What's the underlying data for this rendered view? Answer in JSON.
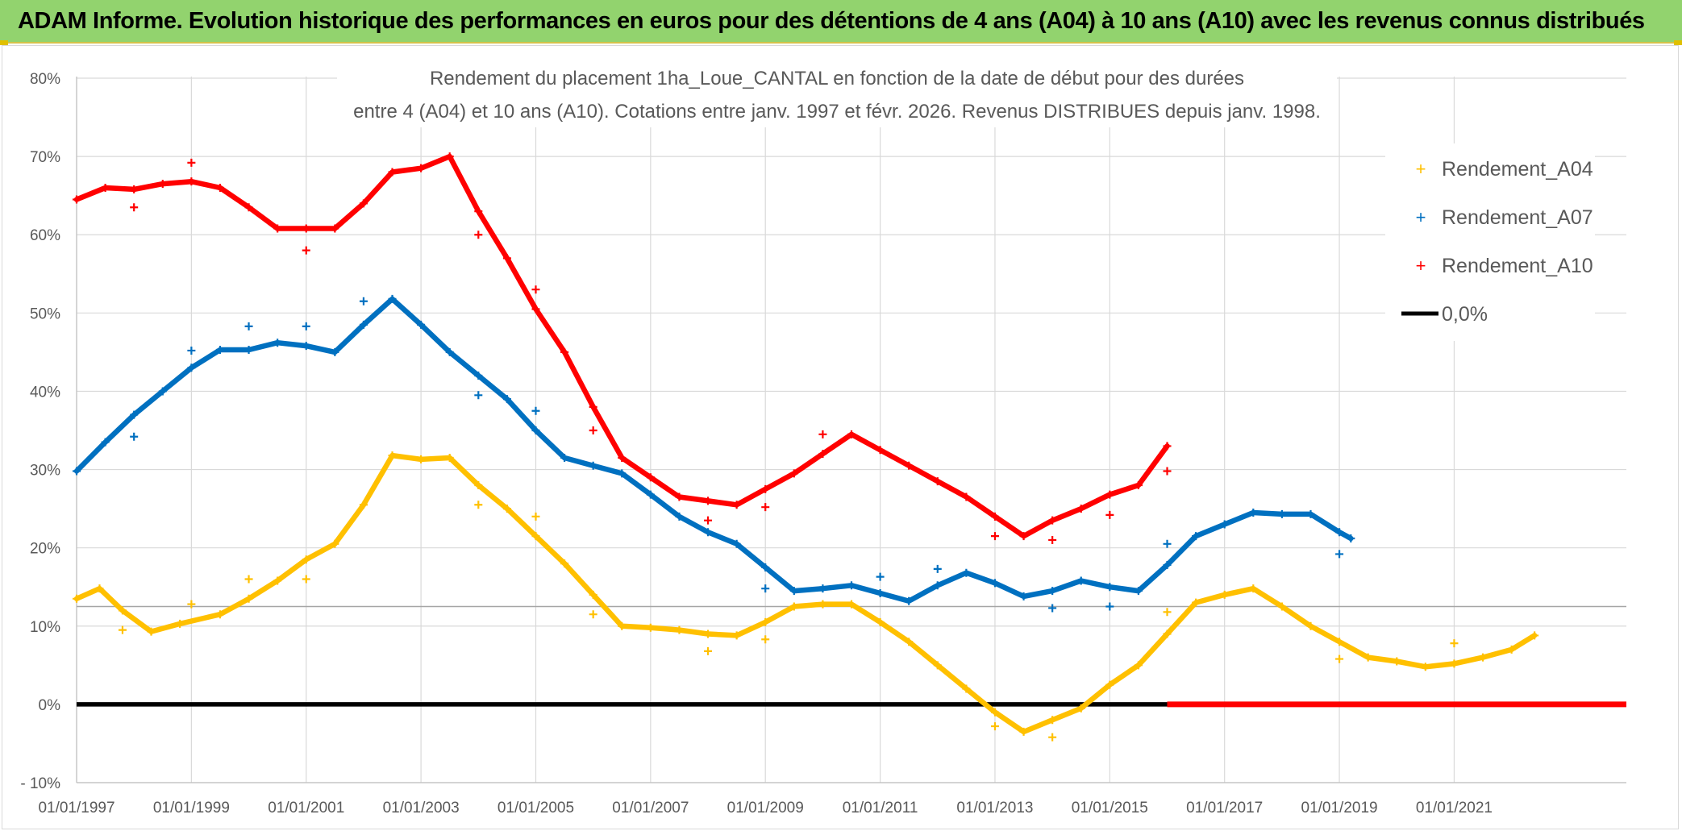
{
  "header": {
    "title": "ADAM Informe. Evolution historique des performances en euros pour des détentions de 4 ans (A04) à 10 ans (A10) avec les revenus connus distribués"
  },
  "colors": {
    "banner": "#92d36e",
    "A04": "#ffc000",
    "A07": "#0070c0",
    "A10": "#ff0000",
    "zero": "#000000"
  },
  "chart_data": {
    "type": "scatter",
    "title_line1": "Rendement du placement 1ha_Loue_CANTAL en fonction de la date de début pour des durées",
    "title_line2": "entre 4 (A04) et 10 ans (A10). Cotations entre janv. 1997 et févr. 2026. Revenus DISTRIBUES depuis janv. 1998.",
    "xlabel": "",
    "ylabel": "",
    "xlim": [
      1997.0,
      2024.0
    ],
    "ylim": [
      -10,
      80
    ],
    "y_ticks": [
      -10,
      0,
      10,
      20,
      30,
      40,
      50,
      60,
      70,
      80
    ],
    "y_tick_labels": [
      "- 10%",
      "0%",
      "10%",
      "20%",
      "30%",
      "40%",
      "50%",
      "60%",
      "70%",
      "80%"
    ],
    "x_ticks": [
      1997,
      1999,
      2001,
      2003,
      2005,
      2007,
      2009,
      2011,
      2013,
      2015,
      2017,
      2019,
      2021
    ],
    "x_tick_labels": [
      "01/01/1997",
      "01/01/1999",
      "01/01/2001",
      "01/01/2003",
      "01/01/2005",
      "01/01/2007",
      "01/01/2009",
      "01/01/2011",
      "01/01/2013",
      "01/01/2015",
      "01/01/2017",
      "01/01/2019",
      "01/01/2021"
    ],
    "legend_position": "top-right",
    "series": [
      {
        "name": "Rendement_A04",
        "color": "#ffc000",
        "points": [
          [
            1997.0,
            13.5
          ],
          [
            1997.4,
            14.8
          ],
          [
            1997.8,
            12.0
          ],
          [
            1998.3,
            9.3
          ],
          [
            1998.8,
            10.3
          ],
          [
            1999.5,
            11.5
          ],
          [
            2000.0,
            13.5
          ],
          [
            2000.5,
            15.8
          ],
          [
            2001.0,
            18.5
          ],
          [
            2001.5,
            20.5
          ],
          [
            2002.0,
            25.5
          ],
          [
            2002.5,
            31.8
          ],
          [
            2003.0,
            31.3
          ],
          [
            2003.5,
            31.5
          ],
          [
            2004.0,
            28.0
          ],
          [
            2004.5,
            25.0
          ],
          [
            2005.0,
            21.5
          ],
          [
            2005.5,
            18.0
          ],
          [
            2006.0,
            14.0
          ],
          [
            2006.5,
            10.0
          ],
          [
            2007.0,
            9.8
          ],
          [
            2007.5,
            9.5
          ],
          [
            2008.0,
            9.0
          ],
          [
            2008.5,
            8.8
          ],
          [
            2009.0,
            10.5
          ],
          [
            2009.5,
            12.5
          ],
          [
            2010.0,
            12.8
          ],
          [
            2010.5,
            12.8
          ],
          [
            2011.0,
            10.5
          ],
          [
            2011.5,
            8.0
          ],
          [
            2012.0,
            5.0
          ],
          [
            2012.5,
            2.0
          ],
          [
            2013.0,
            -1.0
          ],
          [
            2013.5,
            -3.5
          ],
          [
            2014.0,
            -2.0
          ],
          [
            2014.5,
            -0.5
          ],
          [
            2015.0,
            2.5
          ],
          [
            2015.5,
            5.0
          ],
          [
            2016.0,
            9.0
          ],
          [
            2016.5,
            13.0
          ],
          [
            2017.0,
            14.0
          ],
          [
            2017.5,
            14.8
          ],
          [
            2018.0,
            12.5
          ],
          [
            2018.5,
            10.0
          ],
          [
            2019.0,
            8.0
          ],
          [
            2019.5,
            6.0
          ],
          [
            2020.0,
            5.5
          ],
          [
            2020.5,
            4.8
          ],
          [
            2021.0,
            5.2
          ],
          [
            2021.5,
            6.0
          ],
          [
            2022.0,
            7.0
          ],
          [
            2022.4,
            8.8
          ]
        ],
        "outliers": [
          [
            1997.8,
            9.5
          ],
          [
            1999.0,
            12.8
          ],
          [
            2000.0,
            16.0
          ],
          [
            2001.0,
            16.0
          ],
          [
            2004.0,
            25.5
          ],
          [
            2005.0,
            24.0
          ],
          [
            2006.0,
            11.5
          ],
          [
            2008.0,
            6.8
          ],
          [
            2009.0,
            8.3
          ],
          [
            2013.0,
            -2.8
          ],
          [
            2014.0,
            -4.2
          ],
          [
            2016.0,
            11.8
          ],
          [
            2019.0,
            5.8
          ],
          [
            2021.0,
            7.8
          ]
        ]
      },
      {
        "name": "Rendement_A07",
        "color": "#0070c0",
        "points": [
          [
            1997.0,
            29.8
          ],
          [
            1997.5,
            33.5
          ],
          [
            1998.0,
            37.0
          ],
          [
            1998.5,
            40.0
          ],
          [
            1999.0,
            43.0
          ],
          [
            1999.5,
            45.3
          ],
          [
            2000.0,
            45.3
          ],
          [
            2000.5,
            46.2
          ],
          [
            2001.0,
            45.8
          ],
          [
            2001.5,
            45.0
          ],
          [
            2002.0,
            48.5
          ],
          [
            2002.5,
            51.8
          ],
          [
            2003.0,
            48.5
          ],
          [
            2003.5,
            45.0
          ],
          [
            2004.0,
            42.0
          ],
          [
            2004.5,
            39.0
          ],
          [
            2005.0,
            35.0
          ],
          [
            2005.5,
            31.5
          ],
          [
            2006.0,
            30.5
          ],
          [
            2006.5,
            29.5
          ],
          [
            2007.0,
            26.8
          ],
          [
            2007.5,
            24.0
          ],
          [
            2008.0,
            22.0
          ],
          [
            2008.5,
            20.5
          ],
          [
            2009.0,
            17.5
          ],
          [
            2009.5,
            14.5
          ],
          [
            2010.0,
            14.8
          ],
          [
            2010.5,
            15.2
          ],
          [
            2011.0,
            14.2
          ],
          [
            2011.5,
            13.2
          ],
          [
            2012.0,
            15.2
          ],
          [
            2012.5,
            16.8
          ],
          [
            2013.0,
            15.5
          ],
          [
            2013.5,
            13.8
          ],
          [
            2014.0,
            14.5
          ],
          [
            2014.5,
            15.8
          ],
          [
            2015.0,
            15.0
          ],
          [
            2015.5,
            14.5
          ],
          [
            2016.0,
            17.8
          ],
          [
            2016.5,
            21.5
          ],
          [
            2017.0,
            23.0
          ],
          [
            2017.5,
            24.5
          ],
          [
            2018.0,
            24.3
          ],
          [
            2018.5,
            24.3
          ],
          [
            2019.0,
            22.0
          ],
          [
            2019.2,
            21.2
          ]
        ],
        "outliers": [
          [
            1998.0,
            34.2
          ],
          [
            1999.0,
            45.2
          ],
          [
            2000.0,
            48.3
          ],
          [
            2001.0,
            48.3
          ],
          [
            2002.0,
            51.5
          ],
          [
            2004.0,
            39.5
          ],
          [
            2005.0,
            37.5
          ],
          [
            2009.0,
            14.8
          ],
          [
            2011.0,
            16.3
          ],
          [
            2012.0,
            17.3
          ],
          [
            2014.0,
            12.3
          ],
          [
            2015.0,
            12.5
          ],
          [
            2016.0,
            20.5
          ],
          [
            2019.0,
            19.2
          ]
        ]
      },
      {
        "name": "Rendement_A10",
        "color": "#ff0000",
        "points": [
          [
            1997.0,
            64.5
          ],
          [
            1997.5,
            66.0
          ],
          [
            1998.0,
            65.8
          ],
          [
            1998.5,
            66.5
          ],
          [
            1999.0,
            66.8
          ],
          [
            1999.5,
            66.0
          ],
          [
            2000.0,
            63.5
          ],
          [
            2000.5,
            60.8
          ],
          [
            2001.0,
            60.8
          ],
          [
            2001.5,
            60.8
          ],
          [
            2002.0,
            64.0
          ],
          [
            2002.5,
            68.0
          ],
          [
            2003.0,
            68.5
          ],
          [
            2003.5,
            70.0
          ],
          [
            2004.0,
            63.0
          ],
          [
            2004.5,
            57.0
          ],
          [
            2005.0,
            50.5
          ],
          [
            2005.5,
            45.0
          ],
          [
            2006.0,
            38.0
          ],
          [
            2006.5,
            31.5
          ],
          [
            2007.0,
            29.0
          ],
          [
            2007.5,
            26.5
          ],
          [
            2008.0,
            26.0
          ],
          [
            2008.5,
            25.5
          ],
          [
            2009.0,
            27.5
          ],
          [
            2009.5,
            29.5
          ],
          [
            2010.0,
            32.0
          ],
          [
            2010.5,
            34.5
          ],
          [
            2011.0,
            32.5
          ],
          [
            2011.5,
            30.5
          ],
          [
            2012.0,
            28.5
          ],
          [
            2012.5,
            26.5
          ],
          [
            2013.0,
            24.0
          ],
          [
            2013.5,
            21.5
          ],
          [
            2014.0,
            23.5
          ],
          [
            2014.5,
            25.0
          ],
          [
            2015.0,
            26.8
          ],
          [
            2015.5,
            28.0
          ],
          [
            2016.0,
            33.0
          ]
        ],
        "outliers": [
          [
            1998.0,
            63.5
          ],
          [
            1999.0,
            69.2
          ],
          [
            2001.0,
            58.0
          ],
          [
            2004.0,
            60.0
          ],
          [
            2005.0,
            53.0
          ],
          [
            2006.0,
            35.0
          ],
          [
            2008.0,
            23.5
          ],
          [
            2009.0,
            25.2
          ],
          [
            2010.0,
            34.5
          ],
          [
            2013.0,
            21.5
          ],
          [
            2014.0,
            21.0
          ],
          [
            2015.0,
            24.2
          ],
          [
            2016.0,
            29.8
          ]
        ],
        "zero_segment": [
          2016.0,
          2024.0
        ]
      },
      {
        "name": "0,0%",
        "color": "#000000",
        "line": [
          [
            1997.0,
            0
          ],
          [
            2016.0,
            0
          ]
        ]
      }
    ]
  }
}
